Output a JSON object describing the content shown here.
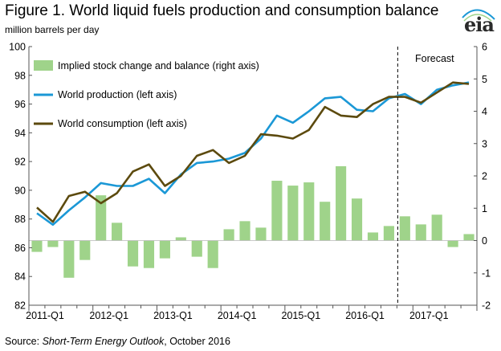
{
  "title": "Figure 1. World liquid fuels production and consumption balance",
  "subtitle": "million barrels per day",
  "logo": "eia",
  "source": {
    "label": "Source:",
    "publication": "Short-Term Energy Outlook",
    "date": ", October 2016"
  },
  "forecast_label": "Forecast",
  "colors": {
    "bars": "#9fd38a",
    "production": "#1b98d6",
    "consumption": "#5c4a0e",
    "axis": "#555555"
  },
  "chart_data": {
    "type": "bar+line",
    "xlabel": "",
    "ylabel_left": "million barrels per day",
    "ylabel_right": "",
    "left_ylim": [
      82,
      100
    ],
    "right_ylim": [
      -2,
      6
    ],
    "left_ticks": [
      82,
      84,
      86,
      88,
      90,
      92,
      94,
      96,
      98,
      100
    ],
    "right_ticks": [
      -2,
      -1,
      0,
      1,
      2,
      3,
      4,
      5,
      6
    ],
    "x_tick_labels": [
      "2011-Q1",
      "2012-Q1",
      "2013-Q1",
      "2014-Q1",
      "2015-Q1",
      "2016-Q1",
      "2017-Q1"
    ],
    "quarters": [
      "2011-Q1",
      "2011-Q2",
      "2011-Q3",
      "2011-Q4",
      "2012-Q1",
      "2012-Q2",
      "2012-Q3",
      "2012-Q4",
      "2013-Q1",
      "2013-Q2",
      "2013-Q3",
      "2013-Q4",
      "2014-Q1",
      "2014-Q2",
      "2014-Q3",
      "2014-Q4",
      "2015-Q1",
      "2015-Q2",
      "2015-Q3",
      "2015-Q4",
      "2016-Q1",
      "2016-Q2",
      "2016-Q3",
      "2016-Q4",
      "2017-Q1",
      "2017-Q2",
      "2017-Q3",
      "2017-Q4"
    ],
    "forecast_start_quarter": "2016-Q4",
    "series": [
      {
        "name": "Implied stock change and balance (right axis)",
        "type": "bar",
        "axis": "right",
        "values": [
          -0.35,
          -0.2,
          -1.15,
          -0.6,
          1.4,
          0.55,
          -0.8,
          -0.85,
          -0.55,
          0.1,
          -0.5,
          -0.85,
          0.35,
          0.6,
          0.4,
          1.85,
          1.7,
          1.8,
          1.2,
          2.3,
          1.3,
          0.25,
          0.45,
          0.75,
          0.5,
          0.8,
          -0.2,
          0.2
        ]
      },
      {
        "name": "World production (left axis)",
        "type": "line",
        "axis": "left",
        "values": [
          88.4,
          87.6,
          88.6,
          89.5,
          90.5,
          90.3,
          90.3,
          90.8,
          89.8,
          91.1,
          91.9,
          92.0,
          92.2,
          92.6,
          93.6,
          95.2,
          94.7,
          95.5,
          96.4,
          96.5,
          95.6,
          95.5,
          96.4,
          96.7,
          96.0,
          97.0,
          97.3,
          97.5
        ]
      },
      {
        "name": "World consumption (left axis)",
        "type": "line",
        "axis": "left",
        "values": [
          88.8,
          87.8,
          89.6,
          89.9,
          89.1,
          89.8,
          91.3,
          91.8,
          90.3,
          91.0,
          92.4,
          92.8,
          91.9,
          92.4,
          93.9,
          93.8,
          93.6,
          94.2,
          95.8,
          95.2,
          95.1,
          96.0,
          96.5,
          96.5,
          96.1,
          96.8,
          97.5,
          97.4
        ]
      }
    ]
  }
}
